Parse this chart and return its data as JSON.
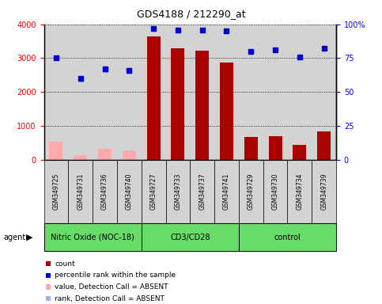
{
  "title": "GDS4188 / 212290_at",
  "samples": [
    "GSM349725",
    "GSM349731",
    "GSM349736",
    "GSM349740",
    "GSM349727",
    "GSM349733",
    "GSM349737",
    "GSM349741",
    "GSM349729",
    "GSM349730",
    "GSM349734",
    "GSM349739"
  ],
  "groups": [
    {
      "label": "Nitric Oxide (NOC-18)",
      "start": 0,
      "end": 4
    },
    {
      "label": "CD3/CD28",
      "start": 4,
      "end": 8
    },
    {
      "label": "control",
      "start": 8,
      "end": 12
    }
  ],
  "bar_values": [
    520,
    130,
    310,
    270,
    3640,
    3300,
    3230,
    2870,
    680,
    690,
    430,
    840
  ],
  "bar_absent": [
    true,
    true,
    true,
    true,
    false,
    false,
    false,
    false,
    false,
    false,
    false,
    false
  ],
  "percentile_values": [
    75,
    60,
    67,
    66,
    97,
    96,
    96,
    95,
    80,
    81,
    76,
    82
  ],
  "rank_absent_values": [
    null,
    2380,
    2650,
    2640,
    null,
    null,
    null,
    null,
    null,
    null,
    null,
    null
  ],
  "ylim_left": [
    0,
    4000
  ],
  "ylim_right": [
    0,
    100
  ],
  "yticks_left": [
    0,
    1000,
    2000,
    3000,
    4000
  ],
  "yticks_right": [
    0,
    25,
    50,
    75,
    100
  ],
  "bar_color_present": "#aa0000",
  "bar_color_absent": "#ffaaaa",
  "dot_color_present": "#0000cc",
  "rank_dot_absent_color": "#aaaaee",
  "bg_color": "#d3d3d3",
  "sample_box_color": "#d3d3d3",
  "group_color": "#66dd66",
  "legend_items": [
    {
      "color": "#aa0000",
      "label": "count"
    },
    {
      "color": "#0000cc",
      "label": "percentile rank within the sample"
    },
    {
      "color": "#ffaaaa",
      "label": "value, Detection Call = ABSENT"
    },
    {
      "color": "#aaaaee",
      "label": "rank, Detection Call = ABSENT"
    }
  ]
}
